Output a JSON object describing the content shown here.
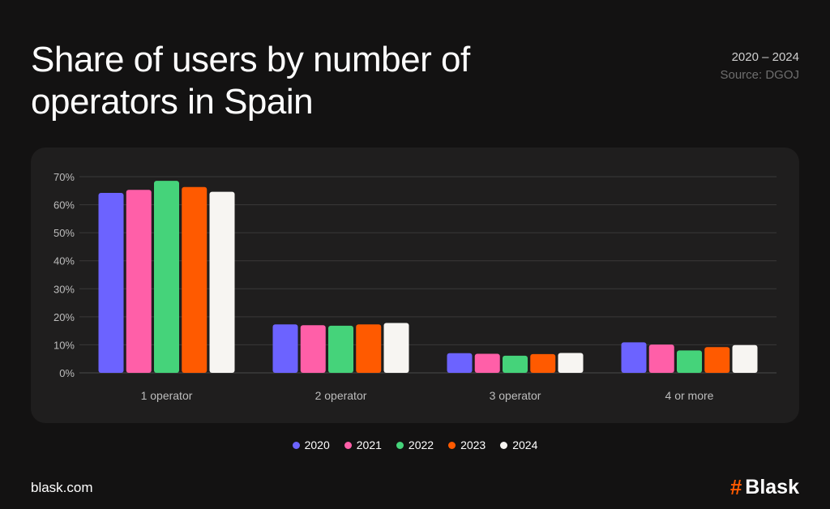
{
  "header": {
    "title": "Share of users by number of operators in Spain",
    "years": "2020 – 2024",
    "source": "Source: DGOJ"
  },
  "chart_data": {
    "type": "bar",
    "title": "Share of users by number of operators in Spain",
    "categories": [
      "1 operator",
      "2 operator",
      "3 operator",
      "4 or more"
    ],
    "series": [
      {
        "name": "2020",
        "color": "#6c63ff",
        "values": [
          64.2,
          17.3,
          7.0,
          10.9
        ]
      },
      {
        "name": "2021",
        "color": "#ff5fa8",
        "values": [
          65.3,
          17.0,
          6.8,
          10.1
        ]
      },
      {
        "name": "2022",
        "color": "#45d37a",
        "values": [
          68.5,
          16.8,
          6.1,
          8.0
        ]
      },
      {
        "name": "2023",
        "color": "#ff5a00",
        "values": [
          66.3,
          17.3,
          6.7,
          9.2
        ]
      },
      {
        "name": "2024",
        "color": "#f7f5f2",
        "values": [
          64.6,
          17.8,
          7.1,
          9.9
        ]
      }
    ],
    "yticks": [
      "0%",
      "10%",
      "20%",
      "30%",
      "40%",
      "50%",
      "60%",
      "70%"
    ],
    "ylim": [
      0,
      70
    ],
    "xlabel": "",
    "ylabel": "",
    "grid": true,
    "legend": "bottom-center"
  },
  "footer": {
    "url": "blask.com",
    "brand_hash": "#",
    "brand_name": "Blask"
  }
}
